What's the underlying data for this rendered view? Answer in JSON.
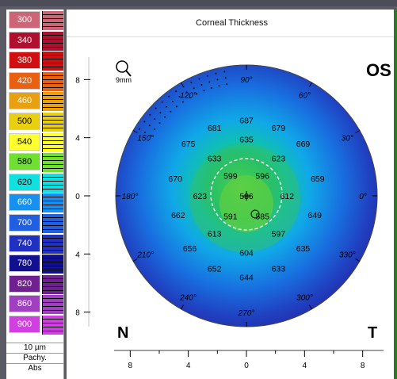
{
  "title": "Corneal Thickness",
  "eye": "OS",
  "nasal_label": "N",
  "temporal_label": "T",
  "zone_label": "9mm",
  "step_label": "10 µm",
  "scale_type_label": "Pachy.",
  "scale_mode_label": "Abs",
  "scale": [
    {
      "value": "300",
      "color": "#cc6677",
      "dark": false
    },
    {
      "value": "340",
      "color": "#b01030",
      "dark": false
    },
    {
      "value": "380",
      "color": "#d01010",
      "dark": false
    },
    {
      "value": "420",
      "color": "#e86010",
      "dark": false
    },
    {
      "value": "460",
      "color": "#e8a010",
      "dark": false
    },
    {
      "value": "500",
      "color": "#e8d010",
      "dark": true
    },
    {
      "value": "540",
      "color": "#ffff30",
      "dark": true
    },
    {
      "value": "580",
      "color": "#70e030",
      "dark": true
    },
    {
      "value": "620",
      "color": "#10e0e0",
      "dark": true
    },
    {
      "value": "660",
      "color": "#1890f0",
      "dark": false
    },
    {
      "value": "700",
      "color": "#2060e0",
      "dark": false
    },
    {
      "value": "740",
      "color": "#2030c0",
      "dark": false
    },
    {
      "value": "780",
      "color": "#101090",
      "dark": false
    },
    {
      "value": "820",
      "color": "#702090",
      "dark": false
    },
    {
      "value": "860",
      "color": "#a040c0",
      "dark": false
    },
    {
      "value": "900",
      "color": "#d040e0",
      "dark": false
    }
  ],
  "axis_labels": {
    "left_top": "8",
    "left_mid_top": "4",
    "left_zero": "0",
    "left_mid_bottom": "4",
    "left_bottom": "8"
  },
  "bottom_axis": [
    "8",
    "4",
    "0",
    "4",
    "8"
  ],
  "angles": [
    {
      "text": "90°",
      "deg": 90
    },
    {
      "text": "60°",
      "deg": 60
    },
    {
      "text": "30°",
      "deg": 30
    },
    {
      "text": "0°",
      "deg": 0
    },
    {
      "text": "330°",
      "deg": 330
    },
    {
      "text": "300°",
      "deg": 300
    },
    {
      "text": "270°",
      "deg": 270
    },
    {
      "text": "240°",
      "deg": 240
    },
    {
      "text": "210°",
      "deg": 210
    },
    {
      "text": "180°",
      "deg": 180
    },
    {
      "text": "150°",
      "deg": 150
    },
    {
      "text": "120°",
      "deg": 120
    }
  ],
  "values": [
    {
      "v": "687",
      "x": 0,
      "y": -5.2
    },
    {
      "v": "681",
      "x": -2.2,
      "y": -4.7
    },
    {
      "v": "679",
      "x": 2.2,
      "y": -4.7
    },
    {
      "v": "675",
      "x": -4.0,
      "y": -3.6
    },
    {
      "v": "635",
      "x": 0,
      "y": -3.9
    },
    {
      "v": "669",
      "x": 3.9,
      "y": -3.6
    },
    {
      "v": "633",
      "x": -2.2,
      "y": -2.6
    },
    {
      "v": "623",
      "x": 2.2,
      "y": -2.6
    },
    {
      "v": "670",
      "x": -4.9,
      "y": -1.2
    },
    {
      "v": "599",
      "x": -1.1,
      "y": -1.4
    },
    {
      "v": "596",
      "x": 1.1,
      "y": -1.4
    },
    {
      "v": "659",
      "x": 4.9,
      "y": -1.2
    },
    {
      "v": "623",
      "x": -3.2,
      "y": 0
    },
    {
      "v": "586",
      "x": 0,
      "y": 0
    },
    {
      "v": "612",
      "x": 2.8,
      "y": 0
    },
    {
      "v": "662",
      "x": -4.7,
      "y": 1.3
    },
    {
      "v": "591",
      "x": -1.1,
      "y": 1.4
    },
    {
      "v": "585",
      "x": 1.1,
      "y": 1.4
    },
    {
      "v": "649",
      "x": 4.7,
      "y": 1.3
    },
    {
      "v": "613",
      "x": -2.2,
      "y": 2.6
    },
    {
      "v": "597",
      "x": 2.2,
      "y": 2.6
    },
    {
      "v": "656",
      "x": -3.9,
      "y": 3.6
    },
    {
      "v": "604",
      "x": 0,
      "y": 3.9
    },
    {
      "v": "635",
      "x": 3.9,
      "y": 3.6
    },
    {
      "v": "652",
      "x": -2.2,
      "y": 5.0
    },
    {
      "v": "633",
      "x": 2.2,
      "y": 5.0
    },
    {
      "v": "644",
      "x": 0,
      "y": 5.6
    }
  ]
}
